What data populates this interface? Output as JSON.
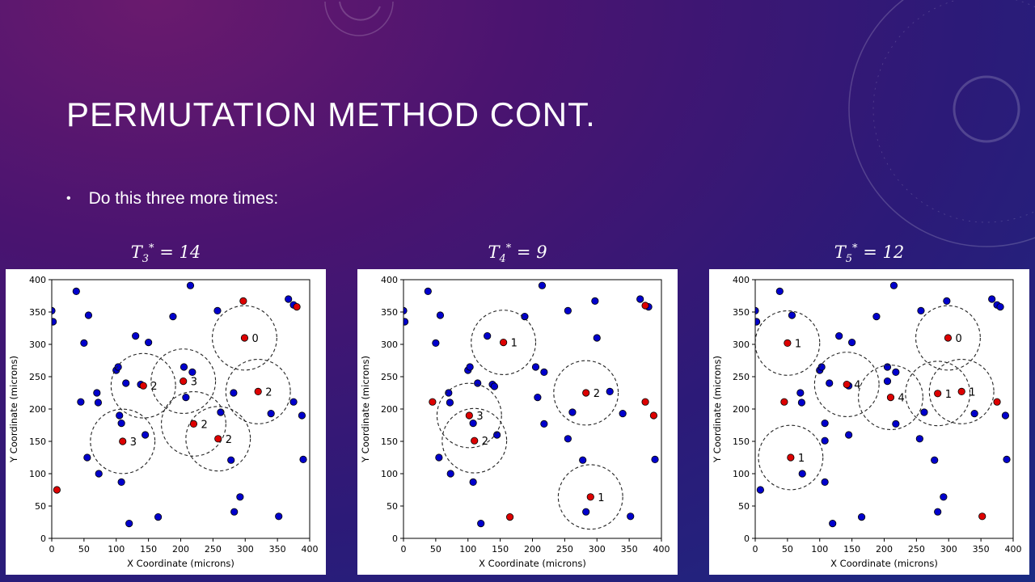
{
  "slide": {
    "title": "PERMUTATION METHOD CONT.",
    "bullet": "Do this three more times:"
  },
  "chart_data": [
    {
      "type": "scatter",
      "title_prefix": "T",
      "title_sub": "3",
      "title_sup": "*",
      "title_value": "= 14",
      "xlabel": "X Coordinate (microns)",
      "ylabel": "Y Coordinate (microns)",
      "xlim": [
        0,
        400
      ],
      "ylim": [
        0,
        400
      ],
      "xticks": [
        0,
        50,
        100,
        150,
        200,
        250,
        300,
        350,
        400
      ],
      "yticks": [
        0,
        50,
        100,
        150,
        200,
        250,
        300,
        350,
        400
      ],
      "circle_radius": 50,
      "blue_points": [
        [
          0,
          352
        ],
        [
          2,
          335
        ],
        [
          38,
          382
        ],
        [
          50,
          302
        ],
        [
          57,
          345
        ],
        [
          45,
          211
        ],
        [
          70,
          225
        ],
        [
          72,
          210
        ],
        [
          55,
          125
        ],
        [
          73,
          100
        ],
        [
          100,
          260
        ],
        [
          103,
          265
        ],
        [
          105,
          190
        ],
        [
          108,
          178
        ],
        [
          115,
          240
        ],
        [
          130,
          313
        ],
        [
          150,
          303
        ],
        [
          138,
          238
        ],
        [
          145,
          160
        ],
        [
          108,
          87
        ],
        [
          120,
          23
        ],
        [
          165,
          33
        ],
        [
          188,
          343
        ],
        [
          215,
          391
        ],
        [
          205,
          265
        ],
        [
          208,
          218
        ],
        [
          218,
          257
        ],
        [
          257,
          352
        ],
        [
          262,
          195
        ],
        [
          278,
          121
        ],
        [
          282,
          225
        ],
        [
          283,
          41
        ],
        [
          292,
          64
        ],
        [
          340,
          193
        ],
        [
          352,
          34
        ],
        [
          367,
          370
        ],
        [
          375,
          361
        ],
        [
          375,
          211
        ],
        [
          388,
          190
        ],
        [
          390,
          122
        ]
      ],
      "red_points": [
        [
          297,
          367
        ],
        [
          380,
          358
        ],
        [
          8,
          75
        ],
        [
          299,
          310
        ],
        [
          142,
          236
        ],
        [
          204,
          243
        ],
        [
          320,
          227
        ],
        [
          220,
          177
        ],
        [
          258,
          154
        ],
        [
          110,
          150
        ]
      ],
      "circles": [
        {
          "x": 299,
          "y": 310,
          "label": "0"
        },
        {
          "x": 142,
          "y": 236,
          "label": "2"
        },
        {
          "x": 204,
          "y": 243,
          "label": "3"
        },
        {
          "x": 320,
          "y": 227,
          "label": "2"
        },
        {
          "x": 220,
          "y": 177,
          "label": "2"
        },
        {
          "x": 258,
          "y": 154,
          "label": "2"
        },
        {
          "x": 110,
          "y": 150,
          "label": "3"
        }
      ]
    },
    {
      "type": "scatter",
      "title_prefix": "T",
      "title_sub": "4",
      "title_sup": "*",
      "title_value": "= 9",
      "xlabel": "X Coordinate (microns)",
      "ylabel": "Y Coordinate (microns)",
      "xlim": [
        0,
        400
      ],
      "ylim": [
        0,
        400
      ],
      "xticks": [
        0,
        50,
        100,
        150,
        200,
        250,
        300,
        350,
        400
      ],
      "yticks": [
        0,
        50,
        100,
        150,
        200,
        250,
        300,
        350,
        400
      ],
      "circle_radius": 50,
      "blue_points": [
        [
          0,
          352
        ],
        [
          2,
          335
        ],
        [
          38,
          382
        ],
        [
          50,
          302
        ],
        [
          57,
          345
        ],
        [
          70,
          225
        ],
        [
          72,
          210
        ],
        [
          55,
          125
        ],
        [
          73,
          100
        ],
        [
          100,
          260
        ],
        [
          103,
          265
        ],
        [
          108,
          178
        ],
        [
          115,
          240
        ],
        [
          130,
          313
        ],
        [
          138,
          238
        ],
        [
          141,
          235
        ],
        [
          145,
          160
        ],
        [
          108,
          87
        ],
        [
          120,
          23
        ],
        [
          188,
          343
        ],
        [
          215,
          391
        ],
        [
          205,
          265
        ],
        [
          208,
          218
        ],
        [
          218,
          257
        ],
        [
          218,
          177
        ],
        [
          255,
          352
        ],
        [
          262,
          195
        ],
        [
          255,
          154
        ],
        [
          278,
          121
        ],
        [
          320,
          227
        ],
        [
          297,
          367
        ],
        [
          300,
          310
        ],
        [
          283,
          41
        ],
        [
          340,
          193
        ],
        [
          352,
          34
        ],
        [
          367,
          370
        ],
        [
          380,
          358
        ],
        [
          390,
          122
        ]
      ],
      "red_points": [
        [
          155,
          303
        ],
        [
          45,
          211
        ],
        [
          102,
          190
        ],
        [
          110,
          151
        ],
        [
          283,
          225
        ],
        [
          375,
          360
        ],
        [
          375,
          211
        ],
        [
          388,
          190
        ],
        [
          290,
          64
        ],
        [
          165,
          33
        ]
      ],
      "circles": [
        {
          "x": 155,
          "y": 303,
          "label": "1"
        },
        {
          "x": 102,
          "y": 190,
          "label": "3"
        },
        {
          "x": 110,
          "y": 151,
          "label": "2"
        },
        {
          "x": 283,
          "y": 225,
          "label": "2"
        },
        {
          "x": 290,
          "y": 64,
          "label": "1"
        }
      ]
    },
    {
      "type": "scatter",
      "title_prefix": "T",
      "title_sub": "5",
      "title_sup": "*",
      "title_value": "= 12",
      "xlabel": "X Coordinate (microns)",
      "ylabel": "Y Coordinate (microns)",
      "xlim": [
        0,
        400
      ],
      "ylim": [
        0,
        400
      ],
      "xticks": [
        0,
        50,
        100,
        150,
        200,
        250,
        300,
        350,
        400
      ],
      "yticks": [
        0,
        50,
        100,
        150,
        200,
        250,
        300,
        350,
        400
      ],
      "circle_radius": 50,
      "blue_points": [
        [
          0,
          352
        ],
        [
          2,
          335
        ],
        [
          38,
          382
        ],
        [
          57,
          345
        ],
        [
          70,
          225
        ],
        [
          72,
          210
        ],
        [
          73,
          100
        ],
        [
          100,
          260
        ],
        [
          103,
          265
        ],
        [
          108,
          178
        ],
        [
          108,
          151
        ],
        [
          115,
          240
        ],
        [
          130,
          313
        ],
        [
          150,
          303
        ],
        [
          145,
          236
        ],
        [
          145,
          160
        ],
        [
          108,
          87
        ],
        [
          120,
          23
        ],
        [
          165,
          33
        ],
        [
          188,
          343
        ],
        [
          215,
          391
        ],
        [
          205,
          265
        ],
        [
          205,
          243
        ],
        [
          218,
          257
        ],
        [
          218,
          177
        ],
        [
          257,
          352
        ],
        [
          262,
          195
        ],
        [
          255,
          154
        ],
        [
          278,
          121
        ],
        [
          297,
          367
        ],
        [
          283,
          41
        ],
        [
          292,
          64
        ],
        [
          340,
          193
        ],
        [
          367,
          370
        ],
        [
          375,
          361
        ],
        [
          380,
          358
        ],
        [
          388,
          190
        ],
        [
          390,
          122
        ],
        [
          8,
          75
        ]
      ],
      "red_points": [
        [
          50,
          302
        ],
        [
          45,
          211
        ],
        [
          55,
          125
        ],
        [
          142,
          238
        ],
        [
          210,
          218
        ],
        [
          283,
          224
        ],
        [
          320,
          227
        ],
        [
          299,
          310
        ],
        [
          375,
          211
        ],
        [
          352,
          34
        ]
      ],
      "circles": [
        {
          "x": 50,
          "y": 302,
          "label": "1"
        },
        {
          "x": 55,
          "y": 125,
          "label": "1"
        },
        {
          "x": 142,
          "y": 238,
          "label": "4"
        },
        {
          "x": 210,
          "y": 218,
          "label": "4"
        },
        {
          "x": 283,
          "y": 224,
          "label": "1"
        },
        {
          "x": 320,
          "y": 227,
          "label": "1"
        },
        {
          "x": 299,
          "y": 310,
          "label": "0"
        }
      ]
    }
  ]
}
